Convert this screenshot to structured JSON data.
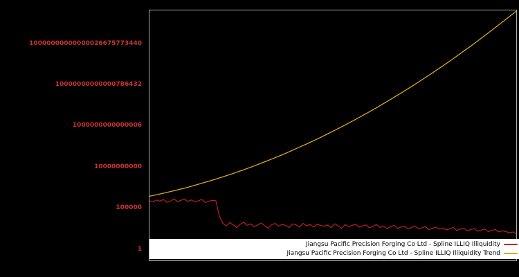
{
  "chart_data": {
    "type": "line",
    "title": "",
    "xlabel": "",
    "ylabel": "",
    "y_scale": "log10",
    "ylim_log10": [
      -1.3,
      29.1
    ],
    "background_color": "#000000",
    "axis_border_color": "#b0b0b0",
    "tick_label_color": "#cc3333",
    "grid": false,
    "legend": {
      "position": "lower-right-full-width",
      "background": "#ffffff"
    },
    "yticks": [
      {
        "log10": 25,
        "label": "10000000000000026675773440"
      },
      {
        "log10": 20,
        "label": "10000000000000786432"
      },
      {
        "log10": 15,
        "label": "1000000000000006"
      },
      {
        "log10": 10,
        "label": "10000000000"
      },
      {
        "log10": 5,
        "label": "100000"
      },
      {
        "log10": 0,
        "label": "1"
      }
    ],
    "series": [
      {
        "name": "Jiangsu Pacific Precision Forging Co Ltd - Spline ILLIQ Illiquidity",
        "color": "#cc2222",
        "stroke_width": 1.1,
        "log10_values": [
          5.95,
          5.8,
          6.05,
          5.9,
          6.1,
          5.75,
          5.92,
          6.2,
          5.85,
          6.0,
          6.15,
          5.88,
          6.05,
          5.8,
          5.95,
          6.1,
          5.72,
          5.9,
          6.0,
          5.95,
          4.1,
          3.2,
          2.9,
          3.3,
          3.0,
          2.7,
          3.1,
          3.35,
          2.95,
          3.15,
          2.8,
          3.0,
          3.25,
          2.9,
          2.6,
          3.05,
          3.2,
          2.85,
          3.1,
          2.95,
          2.7,
          3.15,
          3.0,
          2.8,
          3.2,
          2.9,
          3.05,
          2.75,
          3.1,
          2.95,
          2.85,
          3.0,
          2.7,
          3.15,
          2.9,
          2.6,
          3.05,
          2.8,
          2.95,
          3.1,
          2.75,
          2.9,
          3.0,
          2.65,
          2.85,
          3.05,
          2.7,
          2.9,
          2.55,
          2.8,
          2.95,
          2.6,
          2.75,
          2.85,
          2.5,
          2.7,
          2.9,
          2.55,
          2.65,
          2.8,
          2.45,
          2.6,
          2.75,
          2.5,
          2.65,
          2.4,
          2.55,
          2.7,
          2.35,
          2.5,
          2.6,
          2.3,
          2.45,
          2.55,
          2.25,
          2.4,
          2.5,
          2.2,
          2.35,
          2.45,
          2.15,
          2.3,
          2.2,
          2.05,
          2.15,
          1.95
        ]
      },
      {
        "name": "Jiangsu Pacific Precision Forging Co Ltd - Spline ILLIQ Illiquidity Trend",
        "color": "#d8a920",
        "stroke_width": 1.3,
        "log10_values": [
          6.5,
          6.74,
          7.0,
          7.28,
          7.57,
          7.89,
          8.22,
          8.56,
          8.93,
          9.31,
          9.71,
          10.13,
          10.57,
          11.02,
          11.49,
          11.98,
          12.49,
          13.01,
          13.55,
          14.11,
          14.69,
          15.28,
          15.9,
          16.53,
          17.17,
          17.84,
          18.52,
          19.22,
          19.94,
          20.68,
          21.43,
          22.2,
          22.99,
          23.8,
          24.62,
          25.47,
          26.33,
          27.21,
          28.1,
          29.0
        ]
      }
    ]
  }
}
